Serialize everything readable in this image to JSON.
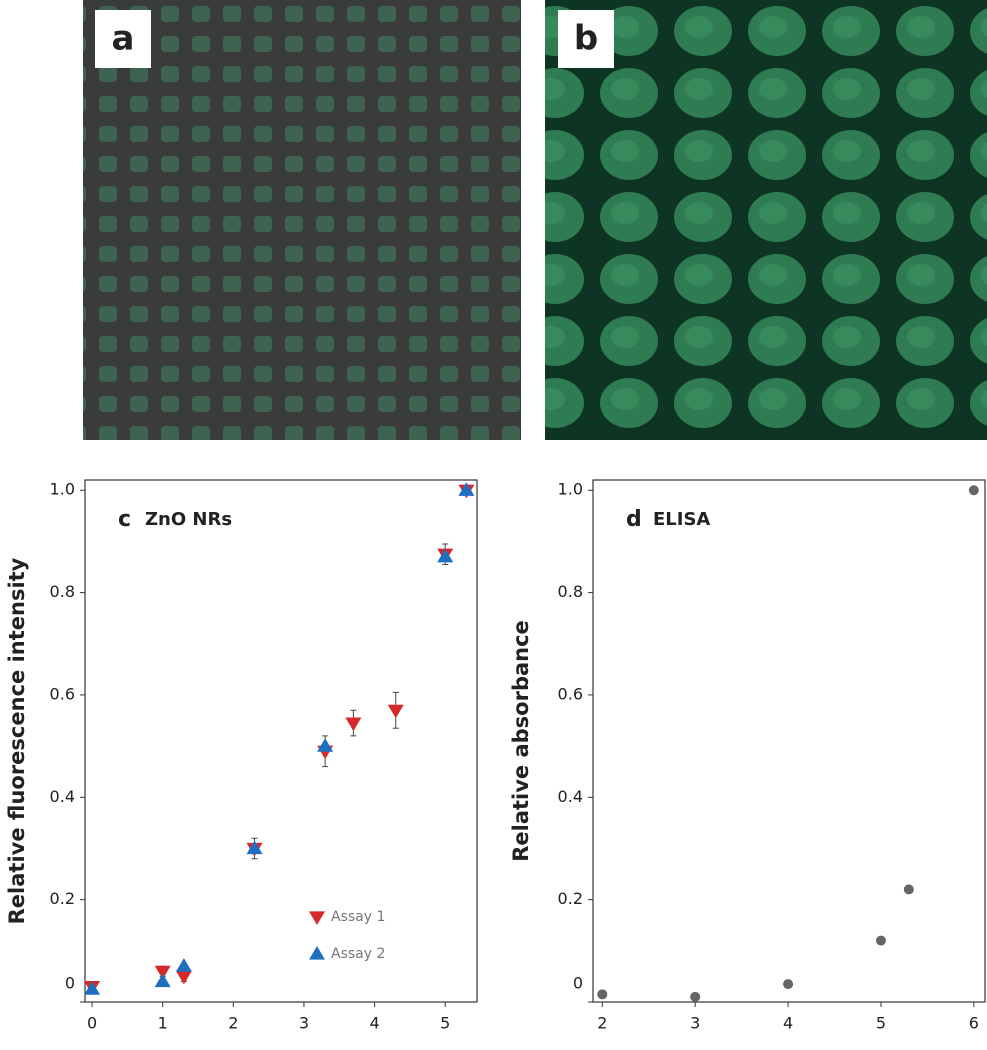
{
  "panels": [
    {
      "label": "a"
    },
    {
      "label": "b"
    }
  ],
  "chart_data": [
    {
      "type": "scatter",
      "panel_label": "c",
      "title": "ZnO NRs",
      "y_label": "Relative fluorescence intensity",
      "xlim": [
        -0.1,
        5.45
      ],
      "xticks": [
        0,
        1,
        2,
        3,
        4,
        5
      ],
      "ylim": [
        0,
        1.02
      ],
      "yticks": [
        0,
        0.2,
        0.4,
        0.6,
        0.8,
        {
          "value": 1,
          "label": "1.0"
        }
      ],
      "legend": "lower right",
      "series": [
        {
          "name": "Assay 1",
          "color": "#d62a2a",
          "marker": "triangle-down",
          "x": [
            0,
            1,
            1.3,
            2.3,
            3.3,
            3.7,
            4.3,
            5,
            5.3
          ],
          "values": [
            0.03,
            0.06,
            0.05,
            0.3,
            0.49,
            0.545,
            0.57,
            0.875,
            1.0
          ],
          "errors": [
            0.01,
            0.01,
            0.01,
            0.02,
            0.03,
            0.025,
            0.035,
            0.02,
            0.005
          ]
        },
        {
          "name": "Assay 2",
          "color": "#1f6fc0",
          "marker": "triangle-up",
          "x": [
            0,
            1,
            1.3,
            2.3,
            3.3,
            5,
            5.3
          ],
          "values": [
            0.025,
            0.04,
            0.07,
            0.3,
            0.5,
            0.87,
            1.0
          ]
        }
      ]
    },
    {
      "type": "scatter",
      "panel_label": "d",
      "title": "ELISA",
      "y_label": "Relative absorbance",
      "xlim": [
        1.9,
        6.12
      ],
      "xticks": [
        2,
        3,
        4,
        5,
        6
      ],
      "ylim": [
        0,
        1.02
      ],
      "yticks": [
        0,
        0.2,
        0.4,
        0.6,
        0.8,
        {
          "value": 1,
          "label": "1.0"
        }
      ],
      "series": [
        {
          "color": "#666666",
          "marker": "circle",
          "x": [
            2,
            3,
            4,
            5,
            5.3,
            6
          ],
          "values": [
            0.015,
            0.01,
            0.035,
            0.12,
            0.22,
            1.0
          ]
        }
      ]
    }
  ]
}
